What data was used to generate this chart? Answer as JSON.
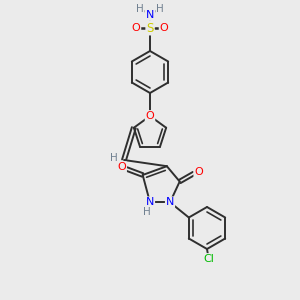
{
  "background_color": "#ebebeb",
  "atom_colors": {
    "C": "#2f2f2f",
    "N": "#0000ff",
    "O": "#ff0000",
    "S": "#cccc00",
    "Cl": "#00bb00",
    "H": "#708090"
  },
  "bond_color": "#2f2f2f",
  "font_size": 7.5,
  "line_width": 1.4
}
